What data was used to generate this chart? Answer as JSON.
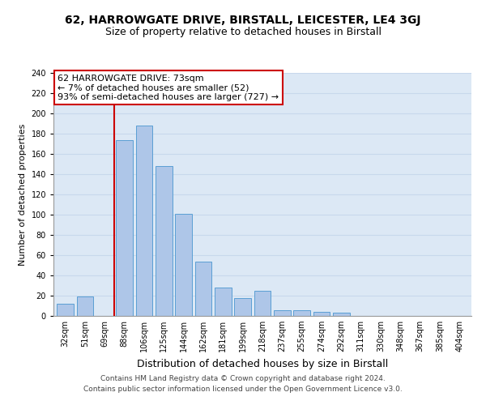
{
  "title": "62, HARROWGATE DRIVE, BIRSTALL, LEICESTER, LE4 3GJ",
  "subtitle": "Size of property relative to detached houses in Birstall",
  "xlabel": "Distribution of detached houses by size in Birstall",
  "ylabel": "Number of detached properties",
  "bin_labels": [
    "32sqm",
    "51sqm",
    "69sqm",
    "88sqm",
    "106sqm",
    "125sqm",
    "144sqm",
    "162sqm",
    "181sqm",
    "199sqm",
    "218sqm",
    "237sqm",
    "255sqm",
    "274sqm",
    "292sqm",
    "311sqm",
    "330sqm",
    "348sqm",
    "367sqm",
    "385sqm",
    "404sqm"
  ],
  "bar_values": [
    12,
    19,
    0,
    174,
    188,
    148,
    101,
    54,
    28,
    18,
    25,
    6,
    6,
    4,
    3,
    0,
    0,
    0,
    0,
    0,
    0
  ],
  "bar_color": "#aec6e8",
  "bar_edge_color": "#5a9fd4",
  "vline_x": 2.5,
  "vline_color": "#cc0000",
  "annotation_line1": "62 HARROWGATE DRIVE: 73sqm",
  "annotation_line2": "← 7% of detached houses are smaller (52)",
  "annotation_line3": "93% of semi-detached houses are larger (727) →",
  "annotation_box_edge": "#cc0000",
  "ylim": [
    0,
    240
  ],
  "yticks": [
    0,
    20,
    40,
    60,
    80,
    100,
    120,
    140,
    160,
    180,
    200,
    220,
    240
  ],
  "footer1": "Contains HM Land Registry data © Crown copyright and database right 2024.",
  "footer2": "Contains public sector information licensed under the Open Government Licence v3.0.",
  "title_fontsize": 10,
  "subtitle_fontsize": 9,
  "xlabel_fontsize": 9,
  "ylabel_fontsize": 8,
  "tick_fontsize": 7,
  "annotation_fontsize": 8,
  "footer_fontsize": 6.5
}
